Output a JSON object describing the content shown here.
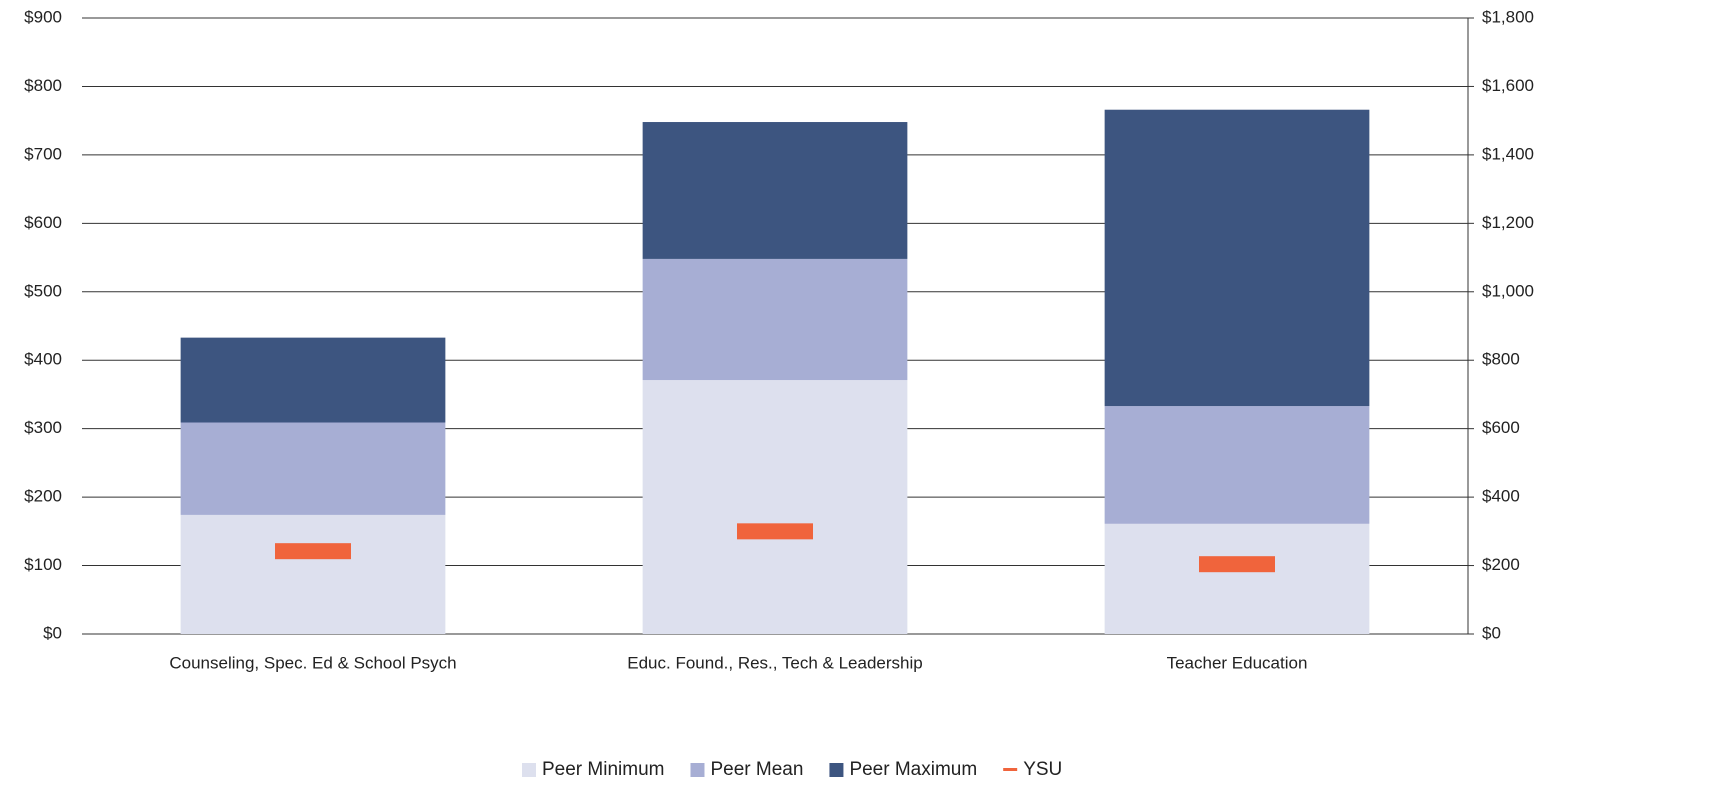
{
  "chart_data": {
    "type": "bar",
    "stacked": true,
    "categories": [
      "Counseling, Spec. Ed & School Psych",
      "Educ. Found., Res., Tech & Leadership",
      "Teacher Education"
    ],
    "series": [
      {
        "name": "Peer Minimum",
        "color": "#dde0ee",
        "values": [
          174,
          371,
          161
        ]
      },
      {
        "name": "Peer Mean",
        "color": "#a7aed4",
        "values": [
          135,
          177,
          172
        ]
      },
      {
        "name": "Peer Maximum",
        "color": "#3d5580",
        "values": [
          124,
          200,
          433
        ]
      },
      {
        "name": "YSU",
        "color": "#f0643c",
        "type": "marker",
        "axis": "y2",
        "values": [
          242,
          300,
          204
        ]
      }
    ],
    "ylim": [
      0,
      900
    ],
    "yticks": [
      {
        "value": 0,
        "label": "$0"
      },
      {
        "value": 100,
        "label": "$100"
      },
      {
        "value": 200,
        "label": "$200"
      },
      {
        "value": 300,
        "label": "$300"
      },
      {
        "value": 400,
        "label": "$400"
      },
      {
        "value": 500,
        "label": "$500"
      },
      {
        "value": 600,
        "label": "$600"
      },
      {
        "value": 700,
        "label": "$700"
      },
      {
        "value": 800,
        "label": "$800"
      },
      {
        "value": 900,
        "label": "$900"
      }
    ],
    "y2lim": [
      0,
      1800
    ],
    "y2ticks": [
      {
        "value": 0,
        "label": "$0"
      },
      {
        "value": 200,
        "label": "$200"
      },
      {
        "value": 400,
        "label": "$400"
      },
      {
        "value": 600,
        "label": "$600"
      },
      {
        "value": 800,
        "label": "$800"
      },
      {
        "value": 1000,
        "label": "$1,000"
      },
      {
        "value": 1200,
        "label": "$1,200"
      },
      {
        "value": 1400,
        "label": "$1,400"
      },
      {
        "value": 1600,
        "label": "$1,600"
      },
      {
        "value": 1800,
        "label": "$1,800"
      }
    ],
    "grid": true,
    "legend": "bottom"
  }
}
